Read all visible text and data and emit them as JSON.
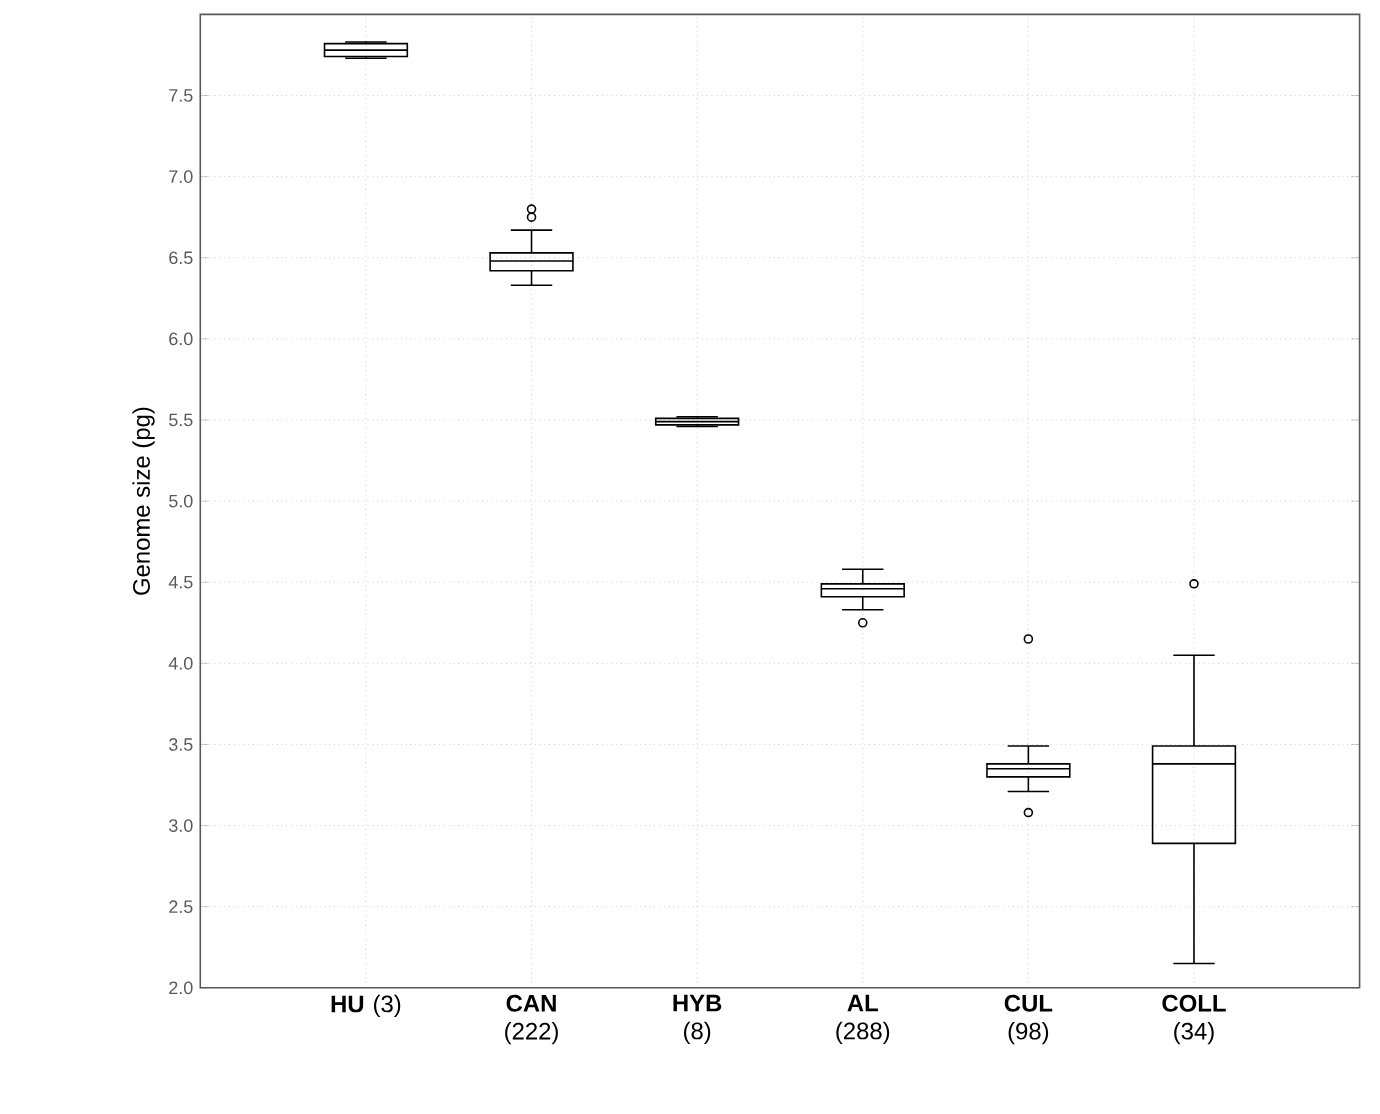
{
  "chart_data": {
    "type": "box",
    "ylabel": "Genome size (pg)",
    "categories": [
      "**HU** (3)",
      "**CAN** (222)",
      "**HYB** (8)",
      "**AL** (288)",
      "**CUL** (98)",
      "**COLL** (34)"
    ],
    "boxes": [
      {
        "low": 7.73,
        "q1": 7.74,
        "median": 7.78,
        "q3": 7.82,
        "high": 7.83
      },
      {
        "low": 6.33,
        "q1": 6.42,
        "median": 6.48,
        "q3": 6.53,
        "high": 6.67,
        "outliers": [
          6.75,
          6.8
        ]
      },
      {
        "low": 5.46,
        "q1": 5.47,
        "median": 5.49,
        "q3": 5.51,
        "high": 5.52
      },
      {
        "low": 4.33,
        "q1": 4.41,
        "median": 4.46,
        "q3": 4.49,
        "high": 4.58,
        "outliers": [
          4.25
        ]
      },
      {
        "low": 3.21,
        "q1": 3.3,
        "median": 3.35,
        "q3": 3.38,
        "high": 3.49,
        "outliers": [
          3.08,
          4.15
        ]
      },
      {
        "low": 2.15,
        "q1": 2.89,
        "median": 3.38,
        "q3": 3.49,
        "high": 4.05,
        "outliers": [
          4.49
        ]
      }
    ],
    "color": "#000000",
    "ylim": [
      2,
      8
    ],
    "yticks": [
      {
        "value": 2,
        "label": "2.0"
      },
      {
        "value": 2.5,
        "label": "2.5"
      },
      {
        "value": 3,
        "label": "3.0"
      },
      {
        "value": 3.5,
        "label": "3.5"
      },
      {
        "value": 4,
        "label": "4.0"
      },
      {
        "value": 4.5,
        "label": "4.5"
      },
      {
        "value": 5,
        "label": "5.0"
      },
      {
        "value": 5.5,
        "label": "5.5"
      },
      {
        "value": 6,
        "label": "6.0"
      },
      {
        "value": 6.5,
        "label": "6.5"
      },
      {
        "value": 7,
        "label": "7.0"
      },
      {
        "value": 7.5,
        "label": "7.5"
      }
    ],
    "grid": true
  }
}
